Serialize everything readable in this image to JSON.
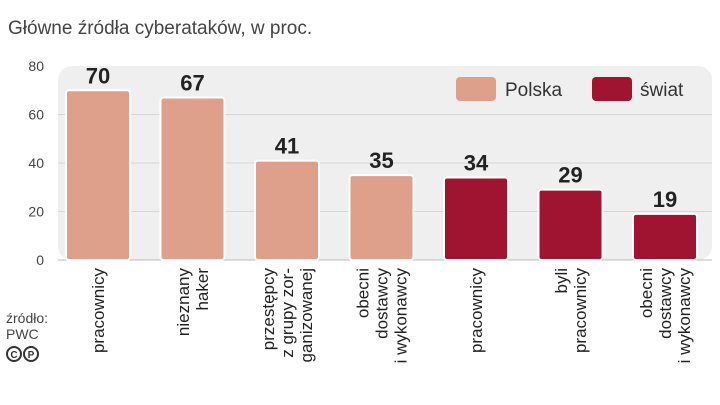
{
  "title": "Główne źródła cyberataków, w proc.",
  "source": {
    "line1": "źródło:",
    "line2": "PWC"
  },
  "colors": {
    "polska": "#dfa08b",
    "swiat": "#a11431",
    "plot_bg": "#efefef",
    "grid": "#d6d6d6"
  },
  "chart_data": {
    "type": "bar",
    "title": "Główne źródła cyberataków, w proc.",
    "ylim": [
      0,
      80
    ],
    "yticks": [
      0,
      20,
      40,
      60,
      80
    ],
    "grid": true,
    "legend": {
      "placement": "top-right",
      "entries": [
        "Polska",
        "świat"
      ]
    },
    "categories": [
      [
        "pracownicy"
      ],
      [
        "nieznany",
        "haker"
      ],
      [
        "przestępcy",
        "z grupy zor-",
        "ganizowanej"
      ],
      [
        "obecni",
        "dostawcy",
        "i wykonawcy"
      ],
      [
        "pracownicy"
      ],
      [
        "byli",
        "pracownicy"
      ],
      [
        "obecni",
        "dostawcy",
        "i wykonawcy"
      ]
    ],
    "values": [
      70,
      67,
      41,
      35,
      34,
      29,
      19
    ],
    "groups": [
      "Polska",
      "Polska",
      "Polska",
      "Polska",
      "świat",
      "świat",
      "świat"
    ]
  }
}
